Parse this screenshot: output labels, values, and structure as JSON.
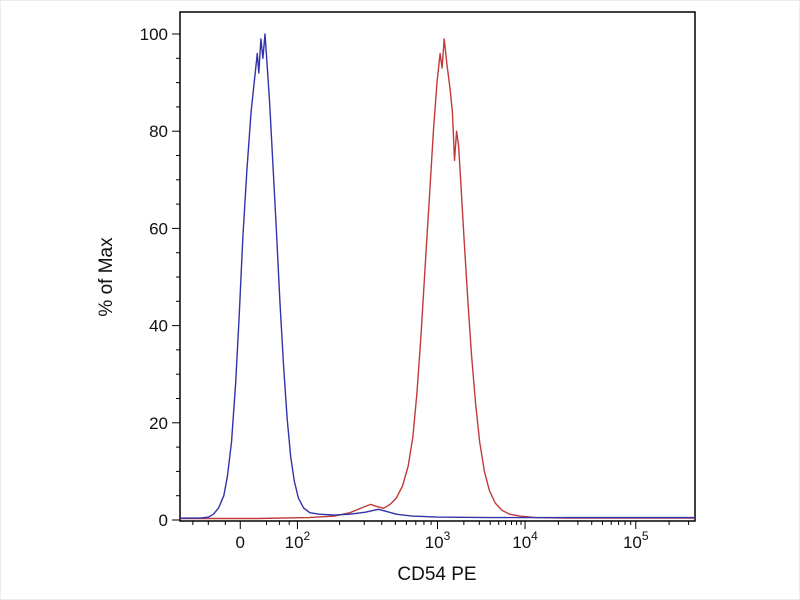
{
  "chart_data": {
    "type": "line",
    "title": "",
    "xlabel": "CD54 PE",
    "ylabel": "% of Max",
    "x_scale": "biexponential-log",
    "ylim": [
      0,
      105
    ],
    "y_ticks": [
      0,
      20,
      40,
      60,
      80,
      100
    ],
    "y_minor_step": 5,
    "x_ticks": [
      {
        "label": "0",
        "exp": "",
        "pos": 0.117
      },
      {
        "label": "10",
        "exp": "2",
        "pos": 0.228
      },
      {
        "label": "10",
        "exp": "3",
        "pos": 0.5
      },
      {
        "label": "10",
        "exp": "4",
        "pos": 0.67
      },
      {
        "label": "10",
        "exp": "5",
        "pos": 0.885
      }
    ],
    "x_minor_extra": [
      0.025,
      0.055,
      0.088,
      0.168,
      0.193,
      0.212
    ],
    "legend": "none",
    "grid": "off",
    "series": [
      {
        "name": "red-curve",
        "color": "#c03a3a",
        "points": [
          [
            0.0,
            0.3
          ],
          [
            0.15,
            0.3
          ],
          [
            0.25,
            0.5
          ],
          [
            0.3,
            0.8
          ],
          [
            0.33,
            1.5
          ],
          [
            0.355,
            2.6
          ],
          [
            0.37,
            3.2
          ],
          [
            0.382,
            2.8
          ],
          [
            0.395,
            2.4
          ],
          [
            0.408,
            3.2
          ],
          [
            0.42,
            4.5
          ],
          [
            0.432,
            7
          ],
          [
            0.443,
            11
          ],
          [
            0.452,
            17
          ],
          [
            0.46,
            26
          ],
          [
            0.468,
            38
          ],
          [
            0.476,
            52
          ],
          [
            0.484,
            66
          ],
          [
            0.492,
            80
          ],
          [
            0.499,
            90
          ],
          [
            0.505,
            96
          ],
          [
            0.509,
            93
          ],
          [
            0.513,
            99
          ],
          [
            0.518,
            94
          ],
          [
            0.524,
            89
          ],
          [
            0.529,
            84
          ],
          [
            0.533,
            74
          ],
          [
            0.537,
            80
          ],
          [
            0.541,
            77
          ],
          [
            0.546,
            68
          ],
          [
            0.552,
            57
          ],
          [
            0.559,
            45
          ],
          [
            0.566,
            34
          ],
          [
            0.574,
            24
          ],
          [
            0.582,
            16
          ],
          [
            0.591,
            10
          ],
          [
            0.601,
            6
          ],
          [
            0.612,
            3.5
          ],
          [
            0.625,
            2
          ],
          [
            0.64,
            1.2
          ],
          [
            0.66,
            0.8
          ],
          [
            0.69,
            0.5
          ],
          [
            0.75,
            0.4
          ],
          [
            1.0,
            0.4
          ]
        ]
      },
      {
        "name": "blue-curve",
        "color": "#3232aa",
        "points": [
          [
            0.0,
            0.4
          ],
          [
            0.04,
            0.4
          ],
          [
            0.055,
            0.6
          ],
          [
            0.065,
            1.2
          ],
          [
            0.075,
            2.5
          ],
          [
            0.085,
            5
          ],
          [
            0.092,
            9
          ],
          [
            0.1,
            16
          ],
          [
            0.108,
            28
          ],
          [
            0.115,
            42
          ],
          [
            0.122,
            58
          ],
          [
            0.13,
            72
          ],
          [
            0.138,
            84
          ],
          [
            0.145,
            91
          ],
          [
            0.15,
            96
          ],
          [
            0.153,
            92
          ],
          [
            0.157,
            99
          ],
          [
            0.161,
            95
          ],
          [
            0.165,
            100
          ],
          [
            0.169,
            94
          ],
          [
            0.174,
            86
          ],
          [
            0.18,
            74
          ],
          [
            0.187,
            60
          ],
          [
            0.194,
            45
          ],
          [
            0.201,
            32
          ],
          [
            0.208,
            21
          ],
          [
            0.215,
            13
          ],
          [
            0.222,
            8
          ],
          [
            0.23,
            4.5
          ],
          [
            0.24,
            2.5
          ],
          [
            0.252,
            1.5
          ],
          [
            0.27,
            1.2
          ],
          [
            0.3,
            1.0
          ],
          [
            0.33,
            1.2
          ],
          [
            0.36,
            1.6
          ],
          [
            0.385,
            2.2
          ],
          [
            0.4,
            1.8
          ],
          [
            0.42,
            1.2
          ],
          [
            0.45,
            0.8
          ],
          [
            0.5,
            0.6
          ],
          [
            0.6,
            0.5
          ],
          [
            0.75,
            0.5
          ],
          [
            1.0,
            0.5
          ]
        ]
      }
    ]
  }
}
